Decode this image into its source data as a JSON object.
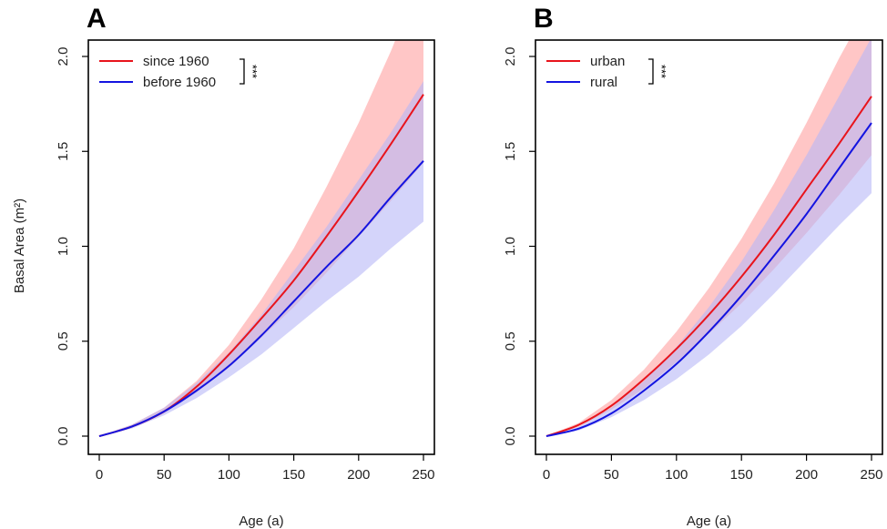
{
  "figure": {
    "ylabel": "Basal Area (m²)"
  },
  "chart_data": [
    {
      "panel": "A",
      "type": "line",
      "xlabel": "Age (a)",
      "ylabel": "Basal Area (m²)",
      "xlim": [
        0,
        250
      ],
      "ylim": [
        0,
        2.0
      ],
      "x_ticks": [
        0,
        50,
        100,
        150,
        200,
        250
      ],
      "y_ticks": [
        0.0,
        0.5,
        1.0,
        1.5,
        2.0
      ],
      "y_tick_labels": [
        "0.0",
        "0.5",
        "1.0",
        "1.5",
        "2.0"
      ],
      "legend": {
        "placement": "top-left"
      },
      "significance": "***",
      "x": [
        0,
        25,
        50,
        75,
        100,
        125,
        150,
        175,
        200,
        225,
        250
      ],
      "series": [
        {
          "name": "since 1960",
          "color": "#e8141c",
          "band_color": "#ffb3b3",
          "values": [
            0.0,
            0.05,
            0.13,
            0.26,
            0.43,
            0.62,
            0.82,
            1.05,
            1.29,
            1.54,
            1.8
          ],
          "lower": [
            0.0,
            0.05,
            0.12,
            0.23,
            0.36,
            0.52,
            0.68,
            0.86,
            1.05,
            1.24,
            1.44
          ],
          "upper": [
            0.0,
            0.06,
            0.15,
            0.29,
            0.48,
            0.72,
            0.99,
            1.31,
            1.65,
            2.03,
            2.45
          ]
        },
        {
          "name": "before 1960",
          "color": "#1414e0",
          "band_color": "#b7b7f7",
          "values": [
            0.0,
            0.05,
            0.13,
            0.24,
            0.37,
            0.53,
            0.71,
            0.89,
            1.06,
            1.26,
            1.45
          ],
          "lower": [
            0.0,
            0.04,
            0.11,
            0.2,
            0.31,
            0.43,
            0.57,
            0.71,
            0.84,
            0.99,
            1.13
          ],
          "upper": [
            0.0,
            0.06,
            0.15,
            0.28,
            0.44,
            0.64,
            0.87,
            1.1,
            1.35,
            1.6,
            1.87
          ]
        }
      ]
    },
    {
      "panel": "B",
      "type": "line",
      "xlabel": "Age (a)",
      "ylabel": "",
      "xlim": [
        0,
        250
      ],
      "ylim": [
        0,
        2.0
      ],
      "x_ticks": [
        0,
        50,
        100,
        150,
        200,
        250
      ],
      "y_ticks": [
        0.0,
        0.5,
        1.0,
        1.5,
        2.0
      ],
      "y_tick_labels": [
        "0.0",
        "0.5",
        "1.0",
        "1.5",
        "2.0"
      ],
      "legend": {
        "placement": "top-left"
      },
      "significance": "***",
      "x": [
        0,
        25,
        50,
        75,
        100,
        125,
        150,
        175,
        200,
        225,
        250
      ],
      "series": [
        {
          "name": "urban",
          "color": "#e8141c",
          "band_color": "#ffb3b3",
          "values": [
            0.0,
            0.06,
            0.16,
            0.3,
            0.46,
            0.64,
            0.84,
            1.06,
            1.3,
            1.54,
            1.79
          ],
          "lower": [
            0.0,
            0.05,
            0.14,
            0.25,
            0.39,
            0.54,
            0.7,
            0.88,
            1.07,
            1.27,
            1.48
          ],
          "upper": [
            0.0,
            0.07,
            0.19,
            0.35,
            0.55,
            0.78,
            1.04,
            1.33,
            1.65,
            1.99,
            2.3
          ]
        },
        {
          "name": "rural",
          "color": "#1414e0",
          "band_color": "#b7b7f7",
          "values": [
            0.0,
            0.04,
            0.12,
            0.24,
            0.38,
            0.55,
            0.74,
            0.95,
            1.17,
            1.41,
            1.65
          ],
          "lower": [
            0.0,
            0.03,
            0.1,
            0.19,
            0.3,
            0.43,
            0.58,
            0.75,
            0.93,
            1.11,
            1.28
          ],
          "upper": [
            0.0,
            0.05,
            0.15,
            0.29,
            0.47,
            0.68,
            0.92,
            1.19,
            1.48,
            1.79,
            2.1
          ]
        }
      ]
    }
  ]
}
